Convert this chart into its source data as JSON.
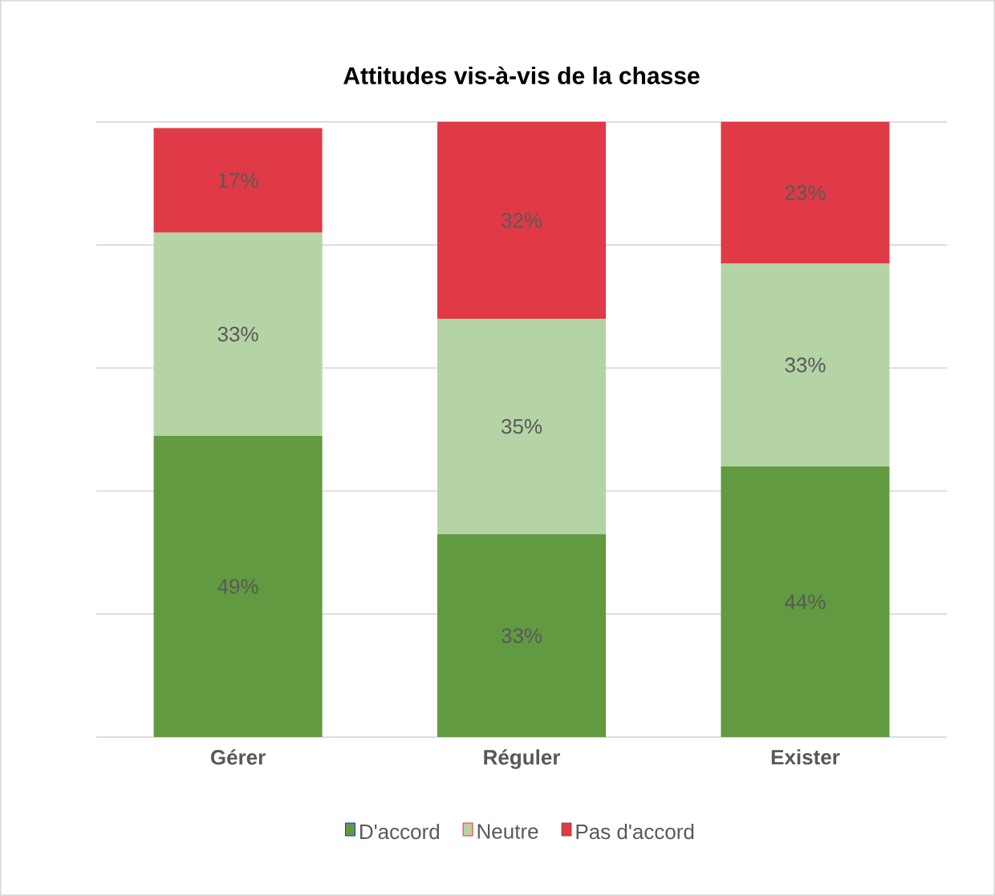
{
  "chart_data": {
    "type": "bar",
    "stacked": true,
    "title": "Attitudes vis-à-vis de la chasse",
    "categories": [
      "Gérer",
      "Réguler",
      "Exister"
    ],
    "series": [
      {
        "name": "D'accord",
        "color": "#629a41",
        "values": [
          49,
          33,
          44
        ],
        "value_labels": [
          "49%",
          "33%",
          "44%"
        ]
      },
      {
        "name": "Neutre",
        "color": "#b5d4a6",
        "values": [
          33,
          35,
          33
        ],
        "value_labels": [
          "33%",
          "35%",
          "33%"
        ]
      },
      {
        "name": "Pas d'accord",
        "color": "#e03a46",
        "values": [
          17,
          32,
          23
        ],
        "value_labels": [
          "17%",
          "32%",
          "23%"
        ]
      }
    ],
    "ylim": [
      0,
      100
    ],
    "yticks": [
      {
        "value": 0,
        "label": null
      },
      {
        "value": 20,
        "label": null
      },
      {
        "value": 40,
        "label": null
      },
      {
        "value": 60,
        "label": null
      },
      {
        "value": 80,
        "label": null
      },
      {
        "value": 100,
        "label": null
      }
    ],
    "tick_labels": "x",
    "grid": "y",
    "legend": "bottom"
  }
}
